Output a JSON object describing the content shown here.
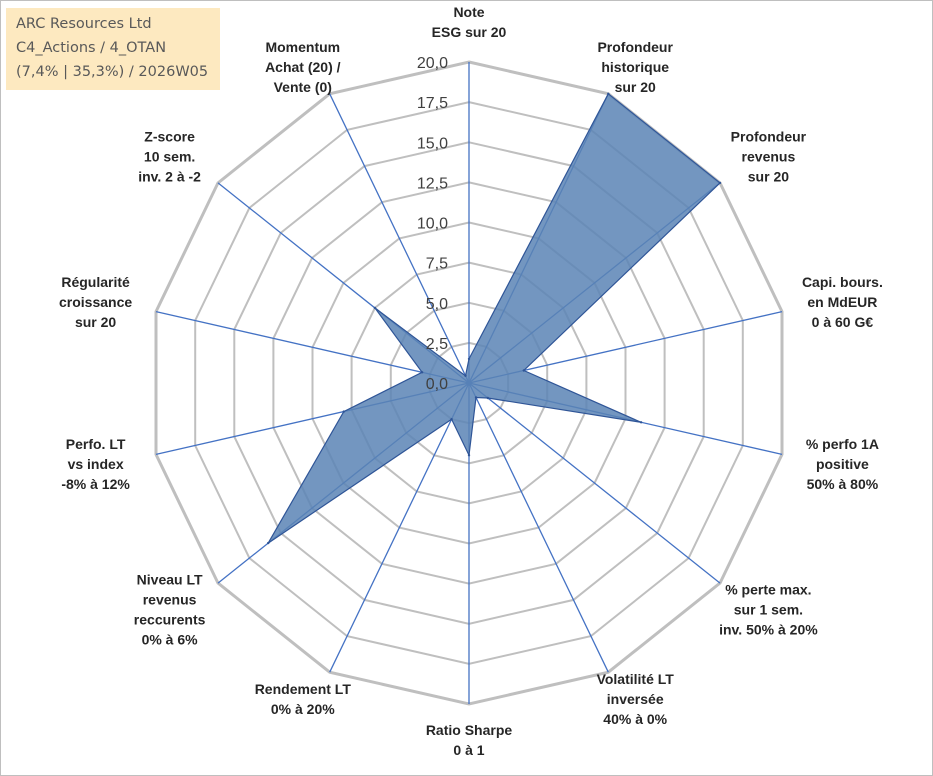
{
  "info": {
    "line1": "ARC Resources Ltd",
    "line2": "C4_Actions / 4_OTAN",
    "line3": "(7,4% | 35,3%) / 2026W05"
  },
  "colors": {
    "fill": "#5b84b5",
    "stroke": "#2f5597",
    "grid": "#bfbfbf",
    "spoke": "#4472c4"
  },
  "chart_data": {
    "type": "radar",
    "title": "",
    "rmin": 0,
    "rmax": 20,
    "ticks": [
      "0,0",
      "2,5",
      "5,0",
      "7,5",
      "10,0",
      "12,5",
      "15,0",
      "17,5",
      "20,0"
    ],
    "axes": [
      {
        "label": [
          "Note",
          "ESG sur 20"
        ],
        "value": 1.5
      },
      {
        "label": [
          "Profondeur",
          "historique",
          "sur 20"
        ],
        "value": 20
      },
      {
        "label": [
          "Profondeur",
          "revenus",
          "sur 20"
        ],
        "value": 20
      },
      {
        "label": [
          "Capi. bours.",
          "en MdEUR",
          "0 à 60 G€"
        ],
        "value": 3.5
      },
      {
        "label": [
          "% perfo 1A",
          "positive",
          "50% à 80%"
        ],
        "value": 11
      },
      {
        "label": [
          "% perte max.",
          "sur 1 sem.",
          "inv. 50% à 20%"
        ],
        "value": 1.5
      },
      {
        "label": [
          "Volatilité LT",
          "inversée",
          "40% à 0%"
        ],
        "value": 1
      },
      {
        "label": [
          "Ratio Sharpe",
          "0 à 1"
        ],
        "value": 4.5
      },
      {
        "label": [
          "Rendement LT",
          "0% à 20%"
        ],
        "value": 2.5
      },
      {
        "label": [
          "Niveau LT",
          "revenus",
          "reccurents",
          "0% à 6%"
        ],
        "value": 16
      },
      {
        "label": [
          "Perfo. LT",
          "vs index",
          "-8% à 12%"
        ],
        "value": 8
      },
      {
        "label": [
          "Régularité",
          "croissance",
          "sur 20"
        ],
        "value": 3
      },
      {
        "label": [
          "Z-score",
          "10 sem.",
          "inv. 2 à -2"
        ],
        "value": 7.5
      },
      {
        "label": [
          "Momentum",
          "Achat (20) /",
          "Vente (0)"
        ],
        "value": 0.5
      }
    ]
  }
}
